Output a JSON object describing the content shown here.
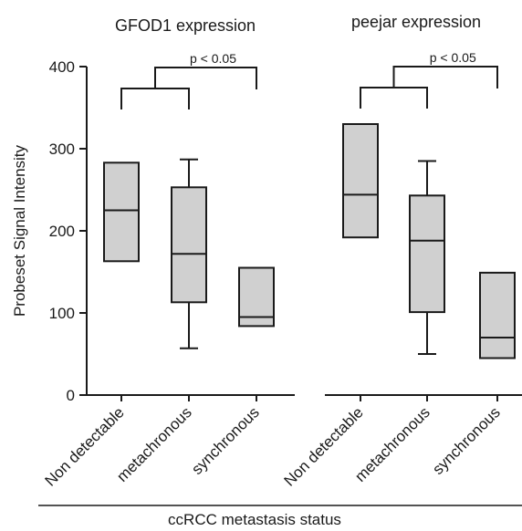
{
  "colors": {
    "box_fill": "#d0d0d0",
    "stroke": "#1a1a1a",
    "background": "#ffffff"
  },
  "ylabel": "Probeset Signal Intensity",
  "xlabel": "ccRCC metastasis status",
  "y_ticks": [
    "0",
    "100",
    "200",
    "300",
    "400"
  ],
  "chart_data": [
    {
      "type": "box",
      "title": "GFOD1 expression",
      "categories": [
        "Non detectable",
        "metachronous",
        "synchronous"
      ],
      "ylim": [
        0,
        400
      ],
      "boxes": [
        {
          "category": "Non detectable",
          "q1": 163,
          "median": 225,
          "q3": 283
        },
        {
          "category": "metachronous",
          "min": 57,
          "q1": 113,
          "median": 172,
          "q3": 253,
          "max": 287
        },
        {
          "category": "synchronous",
          "q1": 84,
          "median": 95,
          "q3": 155
        }
      ],
      "annotations": [
        {
          "text": "p < 0.05",
          "from": [
            "Non detectable",
            "metachronous"
          ],
          "to": "synchronous"
        }
      ]
    },
    {
      "type": "box",
      "title": "peejar expression",
      "categories": [
        "Non detectable",
        "metachronous",
        "synchronous"
      ],
      "ylim": [
        0,
        400
      ],
      "boxes": [
        {
          "category": "Non detectable",
          "q1": 192,
          "median": 244,
          "q3": 330
        },
        {
          "category": "metachronous",
          "min": 50,
          "q1": 101,
          "median": 188,
          "q3": 243,
          "max": 285
        },
        {
          "category": "synchronous",
          "q1": 45,
          "median": 70,
          "q3": 149
        }
      ],
      "annotations": [
        {
          "text": "p < 0.05",
          "from": [
            "Non detectable",
            "metachronous"
          ],
          "to": "synchronous"
        }
      ]
    }
  ]
}
